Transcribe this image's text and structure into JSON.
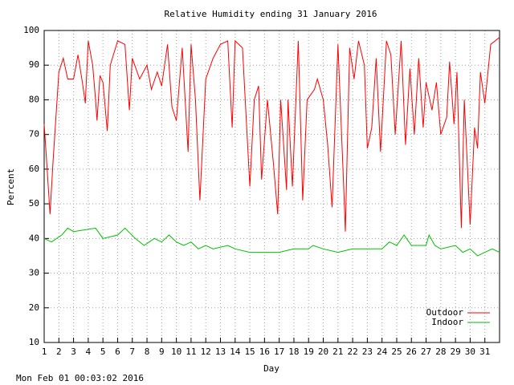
{
  "chart_data": {
    "type": "line",
    "title": "Relative Humidity ending 31 January 2016",
    "x_label": "Day",
    "y_label": "Percent",
    "timestamp": "Mon Feb 01 00:03:02 2016",
    "xlim": [
      1,
      32
    ],
    "xticks": [
      1,
      2,
      3,
      4,
      5,
      6,
      7,
      8,
      9,
      10,
      11,
      12,
      13,
      14,
      15,
      16,
      17,
      18,
      19,
      20,
      21,
      22,
      23,
      24,
      25,
      26,
      27,
      28,
      29,
      30,
      31
    ],
    "ylim": [
      10,
      100
    ],
    "yticks": [
      10,
      20,
      30,
      40,
      50,
      60,
      70,
      80,
      90,
      100
    ],
    "grid": true,
    "legend": "bottom-right",
    "series": [
      {
        "name": "Outdoor",
        "color": "#ff0000",
        "x": [
          1,
          1.2,
          1.4,
          1.6,
          2,
          2.3,
          2.6,
          3,
          3.3,
          3.6,
          3.8,
          4,
          4.3,
          4.5,
          4.6,
          4.8,
          5,
          5.3,
          5.5,
          6,
          6.5,
          6.8,
          7,
          7.5,
          8,
          8.3,
          8.7,
          9,
          9.4,
          9.7,
          10,
          10.4,
          10.8,
          11,
          11.3,
          11.6,
          12,
          12.5,
          13,
          13.5,
          13.8,
          14,
          14.5,
          15,
          15.3,
          15.6,
          15.8,
          16.2,
          16.6,
          16.9,
          17.1,
          17.5,
          17.6,
          17.9,
          18.3,
          18.6,
          18.9,
          19.4,
          19.6,
          20,
          20.3,
          20.6,
          21,
          21.4,
          21.5,
          21.8,
          22.1,
          22.4,
          22.8,
          23,
          23.3,
          23.6,
          23.9,
          24.3,
          24.6,
          24.9,
          25.3,
          25.6,
          25.9,
          26.2,
          26.5,
          26.8,
          27,
          27.4,
          27.7,
          28,
          28.4,
          28.6,
          28.9,
          29.1,
          29.4,
          29.6,
          30,
          30.3,
          30.5,
          30.7,
          31,
          31.4,
          32
        ],
        "values": [
          73,
          60,
          47,
          62,
          88,
          92,
          86,
          86,
          93,
          85,
          79,
          97,
          90,
          80,
          74,
          87,
          85,
          71,
          90,
          97,
          96,
          77,
          92,
          86,
          90,
          83,
          88,
          84,
          96,
          78,
          74,
          95,
          65,
          96,
          80,
          51,
          86,
          92,
          96,
          97,
          72,
          97,
          95,
          55,
          80,
          84,
          57,
          80,
          62,
          47,
          80,
          54,
          80,
          55,
          97,
          51,
          80,
          83,
          86,
          80,
          67,
          49,
          96,
          54,
          42,
          95,
          86,
          97,
          90,
          66,
          72,
          92,
          65,
          97,
          93,
          70,
          97,
          67,
          89,
          70,
          92,
          72,
          85,
          77,
          85,
          70,
          75,
          91,
          73,
          88,
          43,
          80,
          44,
          72,
          66,
          88,
          79,
          96,
          98
        ]
      },
      {
        "name": "Indoor",
        "color": "#00c000",
        "x": [
          1,
          1.5,
          2.2,
          2.6,
          3,
          4.5,
          5,
          6,
          6.5,
          7.2,
          7.8,
          8.5,
          9,
          9.5,
          10,
          10.5,
          11,
          11.5,
          12,
          12.5,
          13.5,
          14,
          15,
          17,
          18,
          19,
          19.3,
          20,
          21,
          22,
          24,
          24.5,
          25,
          25.5,
          26,
          27,
          27.2,
          27.6,
          28,
          29,
          29.5,
          30,
          30.5,
          31,
          31.5,
          32
        ],
        "values": [
          40,
          39,
          41,
          43,
          42,
          43,
          40,
          41,
          43,
          40,
          38,
          40,
          39,
          41,
          39,
          38,
          39,
          37,
          38,
          37,
          38,
          37,
          36,
          36,
          37,
          37,
          38,
          37,
          36,
          37,
          37,
          39,
          38,
          41,
          38,
          38,
          41,
          38,
          37,
          38,
          36,
          37,
          35,
          36,
          37,
          36
        ]
      }
    ]
  }
}
